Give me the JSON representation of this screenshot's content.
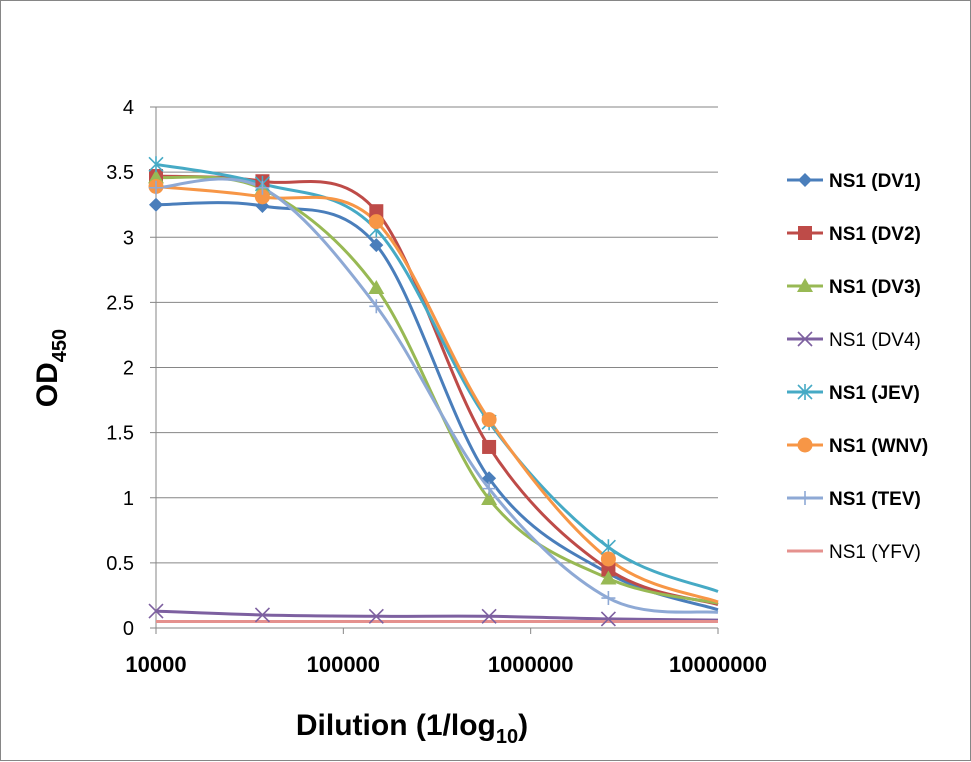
{
  "chart_data": {
    "type": "line",
    "x_scale": "log",
    "x": [
      10000,
      37000,
      150000,
      600000,
      2600000,
      10000000
    ],
    "xticks": [
      "10000",
      "100000",
      "1000000",
      "10000000"
    ],
    "xlim": [
      10000,
      10000000
    ],
    "yticks": [
      "0",
      "0.5",
      "1",
      "1.5",
      "2",
      "2.5",
      "3",
      "3.5",
      "4"
    ],
    "ylim": [
      0,
      4
    ],
    "ylabel_main": "OD",
    "ylabel_sub": "450",
    "xlabel_main": "Dilution (1/log",
    "xlabel_sub": "10",
    "xlabel_tail": ")",
    "grid": "horizontal",
    "legend_position": "right",
    "series": [
      {
        "name": "NS1 (DV1)",
        "color": "#4A7EBB",
        "marker": "diamond",
        "bold": true,
        "values": [
          3.25,
          3.24,
          2.94,
          1.15,
          0.42,
          0.14
        ]
      },
      {
        "name": "NS1 (DV2)",
        "color": "#BE4B48",
        "marker": "square",
        "bold": true,
        "values": [
          3.47,
          3.43,
          3.2,
          1.39,
          0.45,
          0.18
        ]
      },
      {
        "name": "NS1 (DV3)",
        "color": "#98B954",
        "marker": "triangle",
        "bold": true,
        "values": [
          3.46,
          3.37,
          2.61,
          0.99,
          0.38,
          0.19
        ]
      },
      {
        "name": "NS1 (DV4)",
        "color": "#7D60A0",
        "marker": "x",
        "bold": false,
        "values": [
          0.13,
          0.1,
          0.09,
          0.09,
          0.07,
          0.06
        ]
      },
      {
        "name": "NS1 (JEV)",
        "color": "#46AAC5",
        "marker": "star",
        "bold": true,
        "values": [
          3.56,
          3.41,
          3.06,
          1.58,
          0.62,
          0.28
        ]
      },
      {
        "name": "NS1 (WNV)",
        "color": "#F79646",
        "marker": "circle",
        "bold": true,
        "values": [
          3.39,
          3.31,
          3.12,
          1.6,
          0.53,
          0.2
        ]
      },
      {
        "name": "NS1 (TEV)",
        "color": "#8EA9D5",
        "marker": "plus",
        "bold": true,
        "values": [
          3.38,
          3.38,
          2.47,
          1.07,
          0.23,
          0.12
        ]
      },
      {
        "name": "NS1 (YFV)",
        "color": "#E5918E",
        "marker": "none",
        "bold": false,
        "values": [
          0.05,
          0.05,
          0.05,
          0.05,
          0.05,
          0.05
        ]
      }
    ]
  }
}
